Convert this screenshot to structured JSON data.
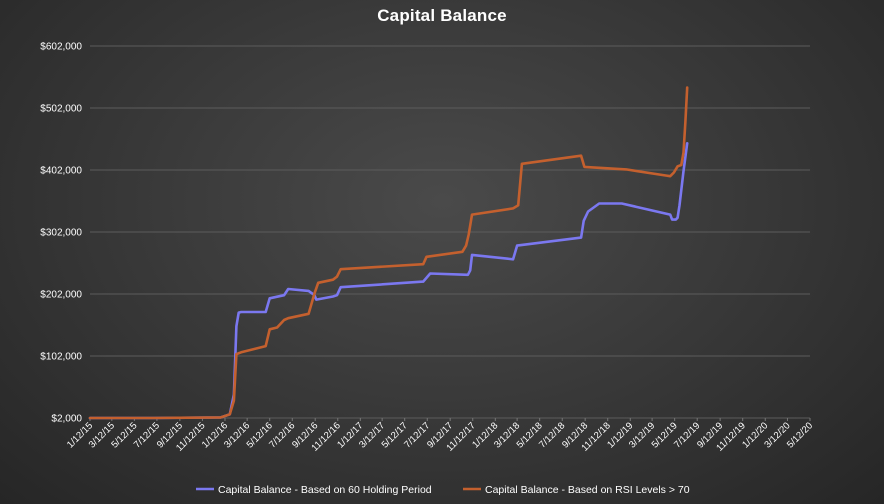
{
  "chart_data": {
    "type": "line",
    "title": "Capital Balance",
    "xlabel": "",
    "ylabel": "",
    "ylim": [
      2000,
      602000
    ],
    "y_ticks": [
      "$2,000",
      "$102,000",
      "$202,000",
      "$302,000",
      "$402,000",
      "$502,000",
      "$602,000"
    ],
    "x_ticks": [
      "1/12/15",
      "3/12/15",
      "5/12/15",
      "7/12/15",
      "9/12/15",
      "11/12/15",
      "1/12/16",
      "3/12/16",
      "5/12/16",
      "7/12/16",
      "9/12/16",
      "11/12/16",
      "1/12/17",
      "3/12/17",
      "5/12/17",
      "7/12/17",
      "9/12/17",
      "11/12/17",
      "1/12/18",
      "3/12/18",
      "5/12/18",
      "7/12/18",
      "9/12/18",
      "11/12/18",
      "1/12/19",
      "3/12/19",
      "5/12/19",
      "7/12/19",
      "9/12/19",
      "11/12/19",
      "1/12/20",
      "3/12/20",
      "5/12/20"
    ],
    "grid": true,
    "legend_position": "bottom",
    "series": [
      {
        "name": "Capital Balance - Based on 60 Holding Period",
        "color": "#7b78f0",
        "x": [
          "2015-01-12",
          "2015-07-01",
          "2016-01-01",
          "2016-01-25",
          "2016-02-05",
          "2016-02-12",
          "2016-02-18",
          "2016-02-25",
          "2016-05-01",
          "2016-05-12",
          "2016-06-20",
          "2016-07-01",
          "2016-08-25",
          "2016-09-10",
          "2016-09-15",
          "2016-10-30",
          "2016-11-10",
          "2016-11-20",
          "2017-07-01",
          "2017-07-20",
          "2017-10-30",
          "2017-11-05",
          "2017-11-10",
          "2018-03-01",
          "2018-03-12",
          "2018-09-01",
          "2018-09-08",
          "2018-09-20",
          "2018-10-20",
          "2018-12-20",
          "2019-04-30",
          "2019-05-05",
          "2019-05-15",
          "2019-05-20",
          "2019-05-25",
          "2019-06-05",
          "2019-06-15"
        ],
        "values": [
          2000,
          2000,
          3000,
          8000,
          40000,
          150000,
          172000,
          173000,
          173000,
          195000,
          200000,
          210000,
          207000,
          200000,
          193000,
          198000,
          200000,
          213000,
          222000,
          235000,
          233000,
          240000,
          265000,
          258000,
          280000,
          293000,
          320000,
          335000,
          348000,
          348000,
          330000,
          322000,
          322000,
          325000,
          345000,
          400000,
          445000
        ]
      },
      {
        "name": "Capital Balance - Based on RSI Levels > 70",
        "color": "#c4602e",
        "x": [
          "2015-01-12",
          "2015-07-01",
          "2016-01-01",
          "2016-01-25",
          "2016-02-05",
          "2016-02-12",
          "2016-02-25",
          "2016-05-01",
          "2016-05-12",
          "2016-06-01",
          "2016-06-20",
          "2016-07-01",
          "2016-08-25",
          "2016-09-10",
          "2016-09-20",
          "2016-10-30",
          "2016-11-10",
          "2016-11-20",
          "2017-07-01",
          "2017-07-10",
          "2017-10-15",
          "2017-10-25",
          "2017-11-01",
          "2017-11-10",
          "2018-03-01",
          "2018-03-15",
          "2018-03-25",
          "2018-09-01",
          "2018-09-10",
          "2019-01-01",
          "2019-04-20",
          "2019-04-30",
          "2019-05-10",
          "2019-05-20",
          "2019-05-30",
          "2019-06-05",
          "2019-06-10",
          "2019-06-15"
        ],
        "values": [
          2000,
          2000,
          3000,
          8000,
          30000,
          105000,
          108000,
          118000,
          145000,
          148000,
          160000,
          163000,
          170000,
          203000,
          220000,
          225000,
          230000,
          242000,
          250000,
          262000,
          270000,
          280000,
          298000,
          330000,
          340000,
          345000,
          412000,
          425000,
          407000,
          403000,
          393000,
          392000,
          398000,
          408000,
          410000,
          430000,
          480000,
          535000
        ]
      }
    ]
  }
}
